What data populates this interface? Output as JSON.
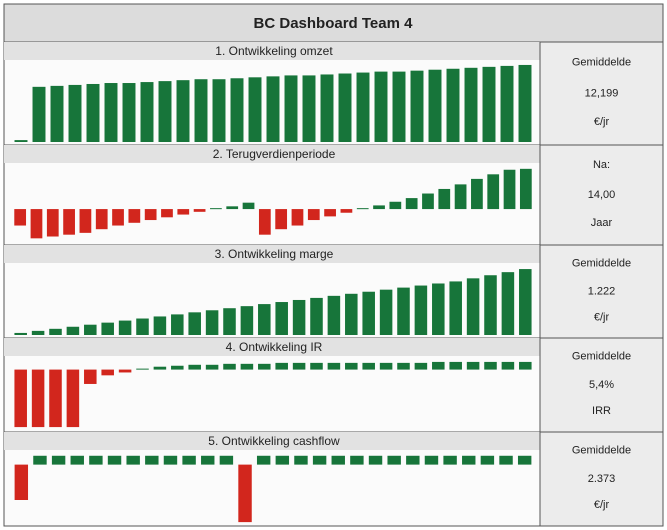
{
  "title": "BC Dashboard Team 4",
  "chart_data": [
    {
      "type": "bar",
      "title": "1. Ontwikkeling omzet",
      "annotations": [
        "Gemiddelde",
        "12,199",
        "€/jr"
      ],
      "categories": [
        null,
        null,
        null,
        null,
        null,
        null,
        null,
        null,
        null,
        null,
        null,
        null,
        null,
        null,
        null,
        null,
        null,
        null,
        null,
        null,
        null,
        null,
        null,
        null,
        null,
        null,
        null,
        null,
        null
      ],
      "values": [
        2,
        58,
        59,
        60,
        61,
        62,
        62,
        63,
        64,
        65,
        66,
        66,
        67,
        68,
        69,
        70,
        70,
        71,
        72,
        73,
        74,
        74,
        75,
        76,
        77,
        78,
        79,
        80,
        81
      ],
      "ylim": [
        0,
        82
      ],
      "colors": {
        "positive": "#17753a",
        "negative": "#d2261d"
      }
    },
    {
      "type": "bar",
      "title": "2. Terugverdienperiode",
      "annotations": [
        "Na:",
        "14,00",
        "Jaar"
      ],
      "categories": [
        null,
        null,
        null,
        null,
        null,
        null,
        null,
        null,
        null,
        null,
        null,
        null,
        null,
        null,
        null,
        null,
        null,
        null,
        null,
        null,
        null,
        null,
        null,
        null,
        null,
        null,
        null,
        null,
        null,
        null,
        null,
        null
      ],
      "values": [
        -18,
        -32,
        -30,
        -28,
        -26,
        -22,
        -18,
        -15,
        -12,
        -9,
        -6,
        -3,
        1,
        3,
        7,
        -28,
        -22,
        -18,
        -12,
        -8,
        -4,
        1,
        4,
        8,
        12,
        17,
        22,
        27,
        33,
        38,
        43,
        44
      ],
      "ylim": [
        -36,
        46
      ],
      "colors": {
        "positive": "#17753a",
        "negative": "#d2261d"
      }
    },
    {
      "type": "bar",
      "title": "3. Ontwikkeling marge",
      "annotations": [
        "Gemiddelde",
        "1.222",
        "€/jr"
      ],
      "categories": [
        null,
        null,
        null,
        null,
        null,
        null,
        null,
        null,
        null,
        null,
        null,
        null,
        null,
        null,
        null,
        null,
        null,
        null,
        null,
        null,
        null,
        null,
        null,
        null,
        null,
        null,
        null,
        null,
        null,
        null
      ],
      "values": [
        2,
        4,
        6,
        8,
        10,
        12,
        14,
        16,
        18,
        20,
        22,
        24,
        26,
        28,
        30,
        32,
        34,
        36,
        38,
        40,
        42,
        44,
        46,
        48,
        50,
        52,
        55,
        58,
        61,
        64
      ],
      "ylim": [
        0,
        66
      ],
      "colors": {
        "positive": "#17753a",
        "negative": "#d2261d"
      }
    },
    {
      "type": "bar",
      "title": "4. Ontwikkeling IR",
      "annotations": [
        "Gemiddelde",
        "5,4%",
        "IRR"
      ],
      "categories": [
        null,
        null,
        null,
        null,
        null,
        null,
        null,
        null,
        null,
        null,
        null,
        null,
        null,
        null,
        null,
        null,
        null,
        null,
        null,
        null,
        null,
        null,
        null,
        null,
        null,
        null,
        null,
        null,
        null,
        null
      ],
      "values": [
        -60,
        -60,
        -60,
        -60,
        -15,
        -6,
        -3,
        1,
        3,
        4,
        5,
        5,
        6,
        6,
        6,
        7,
        7,
        7,
        7,
        7,
        7,
        7,
        7,
        7,
        8,
        8,
        8,
        8,
        8,
        8
      ],
      "ylim": [
        -62,
        10
      ],
      "colors": {
        "positive": "#17753a",
        "negative": "#d2261d"
      }
    },
    {
      "type": "bar",
      "title": "5. Ontwikkeling cashflow",
      "annotations": [
        "Gemiddelde",
        "2.373",
        "€/jr"
      ],
      "categories": [
        null,
        null,
        null,
        null,
        null,
        null,
        null,
        null,
        null,
        null,
        null,
        null,
        null,
        null,
        null,
        null,
        null,
        null,
        null,
        null,
        null,
        null,
        null,
        null,
        null,
        null,
        null,
        null
      ],
      "values": [
        -40,
        10,
        10,
        10,
        10,
        10,
        10,
        10,
        10,
        10,
        10,
        10,
        -65,
        10,
        10,
        10,
        10,
        10,
        10,
        10,
        10,
        10,
        10,
        10,
        10,
        10,
        10,
        10
      ],
      "ylim": [
        -66,
        12
      ],
      "colors": {
        "positive": "#17753a",
        "negative": "#d2261d"
      }
    }
  ]
}
